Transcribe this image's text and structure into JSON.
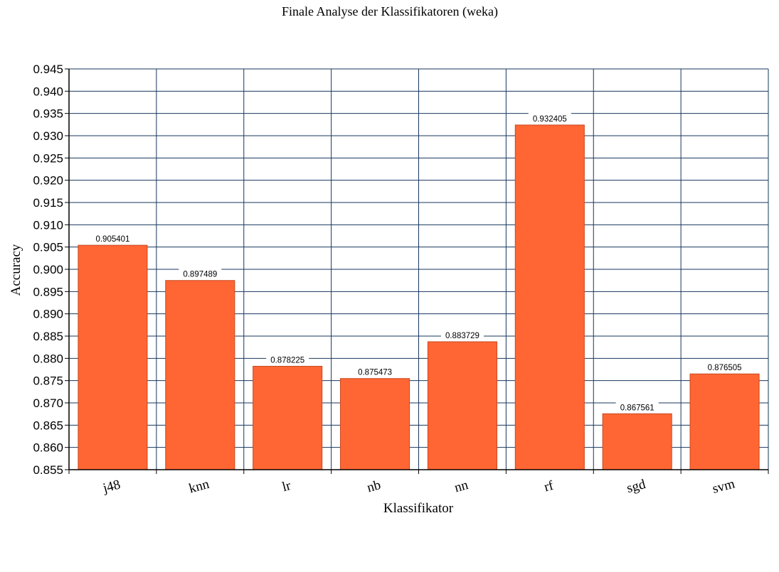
{
  "chart_data": {
    "type": "bar",
    "title": "Finale Analyse der Klassifikatoren (weka)",
    "xlabel": "Klassifikator",
    "ylabel": "Accuracy",
    "categories": [
      "j48",
      "knn",
      "lr",
      "nb",
      "nn",
      "rf",
      "sgd",
      "svm"
    ],
    "values": [
      0.905401,
      0.897489,
      0.878225,
      0.875473,
      0.883729,
      0.932405,
      0.867561,
      0.876505
    ],
    "data_labels": [
      "0.905401",
      "0.897489",
      "0.878225",
      "0.875473",
      "0.883729",
      "0.932405",
      "0.867561",
      "0.876505"
    ],
    "ylim": [
      0.855,
      0.945
    ],
    "yticks": [
      "0.855",
      "0.860",
      "0.865",
      "0.870",
      "0.875",
      "0.880",
      "0.885",
      "0.890",
      "0.895",
      "0.900",
      "0.905",
      "0.910",
      "0.915",
      "0.920",
      "0.925",
      "0.930",
      "0.935",
      "0.940",
      "0.945"
    ],
    "grid": true,
    "legend": "none",
    "colors": {
      "bar": "#ff6633",
      "bar_edge": "#c8481f",
      "grid": "#17365d",
      "axis": "#000000"
    }
  }
}
